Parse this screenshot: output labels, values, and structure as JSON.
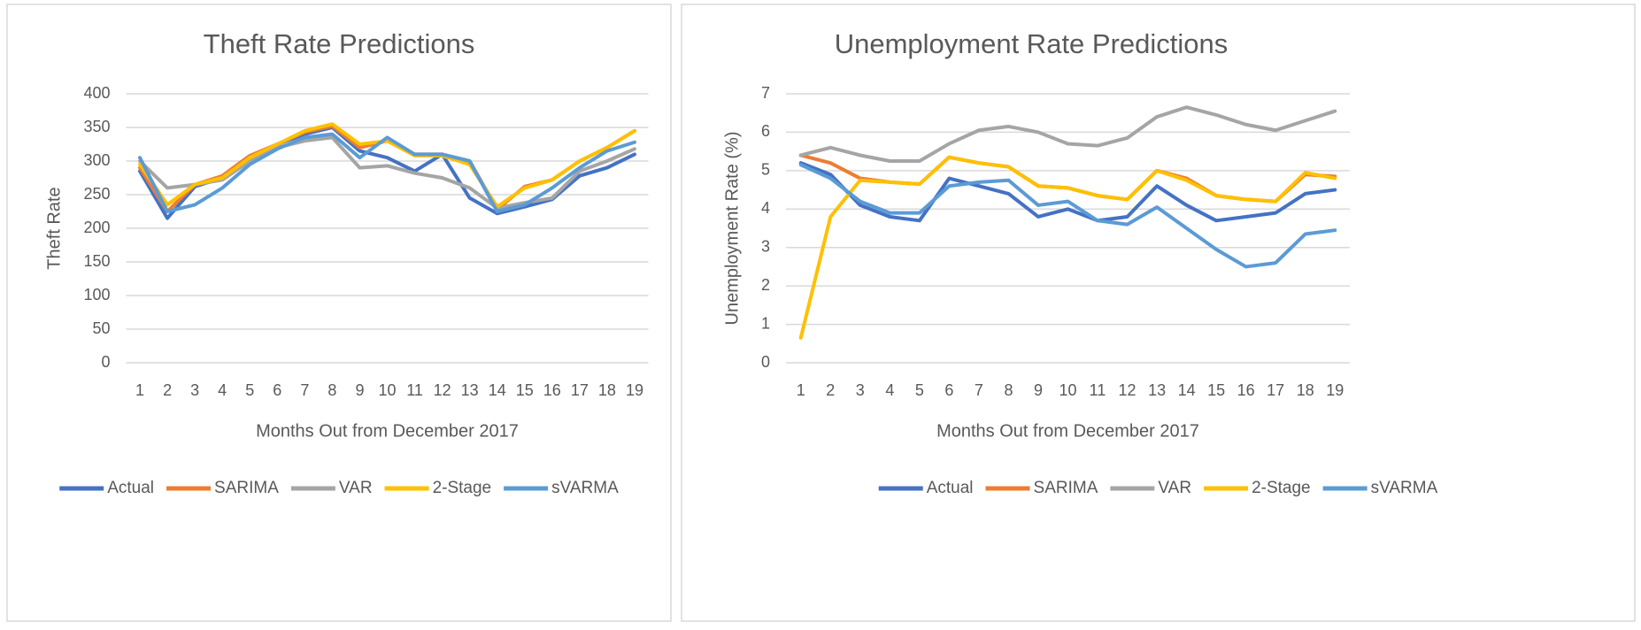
{
  "chart_data": [
    {
      "type": "line",
      "title": "Theft Rate Predictions",
      "x_label": "Months Out from December 2017",
      "y_label": "Theft Rate",
      "categories": [
        "1",
        "2",
        "3",
        "4",
        "5",
        "6",
        "7",
        "8",
        "9",
        "10",
        "11",
        "12",
        "13",
        "14",
        "15",
        "16",
        "17",
        "18",
        "19"
      ],
      "ylim": [
        0,
        400
      ],
      "yticks": [
        0,
        50,
        100,
        150,
        200,
        250,
        300,
        350,
        400
      ],
      "grid": true,
      "legend": "bottom",
      "series": [
        {
          "name": "Actual",
          "color": "#4472c4",
          "values": [
            285,
            215,
            262,
            275,
            305,
            325,
            340,
            350,
            315,
            305,
            285,
            310,
            245,
            222,
            232,
            243,
            278,
            290,
            310
          ]
        },
        {
          "name": "SARIMA",
          "color": "#ed7d31",
          "values": [
            290,
            225,
            265,
            278,
            308,
            325,
            343,
            352,
            320,
            330,
            310,
            310,
            300,
            228,
            262,
            272,
            300,
            320,
            345
          ]
        },
        {
          "name": "VAR",
          "color": "#a5a5a5",
          "values": [
            300,
            260,
            265,
            272,
            300,
            320,
            330,
            335,
            290,
            293,
            282,
            275,
            260,
            230,
            238,
            245,
            285,
            300,
            318
          ]
        },
        {
          "name": "2-Stage",
          "color": "#ffc000",
          "values": [
            295,
            235,
            265,
            275,
            305,
            325,
            345,
            355,
            325,
            330,
            308,
            308,
            295,
            232,
            260,
            272,
            300,
            320,
            345
          ]
        },
        {
          "name": "sVARMA",
          "color": "#5b9bd5",
          "values": [
            305,
            225,
            235,
            260,
            295,
            318,
            335,
            340,
            305,
            335,
            310,
            310,
            300,
            225,
            235,
            260,
            290,
            315,
            328
          ]
        }
      ]
    },
    {
      "type": "line",
      "title": "Unemployment Rate Predictions",
      "x_label": "Months Out from December 2017",
      "y_label": "Unemployment  Rate (%)",
      "categories": [
        "1",
        "2",
        "3",
        "4",
        "5",
        "6",
        "7",
        "8",
        "9",
        "10",
        "11",
        "12",
        "13",
        "14",
        "15",
        "16",
        "17",
        "18",
        "19"
      ],
      "ylim": [
        0,
        7
      ],
      "yticks": [
        0,
        1,
        2,
        3,
        4,
        5,
        6,
        7
      ],
      "grid": true,
      "legend": "bottom",
      "series": [
        {
          "name": "Actual",
          "color": "#4472c4",
          "values": [
            5.2,
            4.9,
            4.1,
            3.8,
            3.7,
            4.8,
            4.6,
            4.4,
            3.8,
            4.0,
            3.7,
            3.8,
            4.6,
            4.1,
            3.7,
            3.8,
            3.9,
            4.4,
            4.5
          ]
        },
        {
          "name": "SARIMA",
          "color": "#ed7d31",
          "values": [
            5.4,
            5.2,
            4.8,
            4.7,
            4.65,
            5.35,
            5.2,
            5.1,
            4.6,
            4.55,
            4.35,
            4.25,
            5.0,
            4.8,
            4.35,
            4.25,
            4.2,
            4.9,
            4.85
          ]
        },
        {
          "name": "VAR",
          "color": "#a5a5a5",
          "values": [
            5.4,
            5.6,
            5.4,
            5.25,
            5.25,
            5.7,
            6.05,
            6.15,
            6.0,
            5.7,
            5.65,
            5.85,
            6.4,
            6.65,
            6.45,
            6.2,
            6.05,
            6.3,
            6.55
          ]
        },
        {
          "name": "2-Stage",
          "color": "#ffc000",
          "values": [
            0.65,
            3.8,
            4.75,
            4.7,
            4.65,
            5.35,
            5.2,
            5.1,
            4.6,
            4.55,
            4.35,
            4.25,
            5.0,
            4.75,
            4.35,
            4.25,
            4.2,
            4.95,
            4.8
          ]
        },
        {
          "name": "sVARMA",
          "color": "#5b9bd5",
          "values": [
            5.15,
            4.8,
            4.2,
            3.9,
            3.9,
            4.6,
            4.7,
            4.75,
            4.1,
            4.2,
            3.7,
            3.6,
            4.05,
            3.5,
            2.95,
            2.5,
            2.6,
            3.35,
            3.45
          ]
        }
      ]
    }
  ]
}
